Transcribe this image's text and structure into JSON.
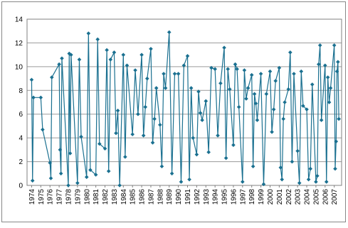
{
  "chart_data": {
    "type": "line",
    "grid": true,
    "x": [
      1974.0,
      1974.1,
      1974.2,
      1975.0,
      1975.2,
      1976.0,
      1976.1,
      1976.2,
      1977.0,
      1977.1,
      1977.2,
      1977.3,
      1978.0,
      1978.1,
      1978.2,
      1978.3,
      1979.0,
      1979.2,
      1979.4,
      1980.0,
      1980.2,
      1980.4,
      1981.0,
      1981.2,
      1981.4,
      1982.0,
      1982.2,
      1982.4,
      1982.6,
      1983.0,
      1983.2,
      1983.4,
      1983.6,
      1984.0,
      1984.2,
      1984.4,
      1985.0,
      1985.3,
      1985.6,
      1986.0,
      1986.2,
      1986.4,
      1986.6,
      1987.0,
      1987.2,
      1987.4,
      1987.6,
      1988.0,
      1988.2,
      1988.4,
      1988.6,
      1989.0,
      1989.3,
      1989.6,
      1990.0,
      1990.3,
      1990.6,
      1991.0,
      1991.2,
      1991.4,
      1991.6,
      1992.0,
      1992.2,
      1992.4,
      1992.6,
      1993.0,
      1993.3,
      1993.6,
      1994.0,
      1994.3,
      1994.6,
      1995.0,
      1995.2,
      1995.4,
      1995.6,
      1996.0,
      1996.2,
      1996.4,
      1996.6,
      1997.0,
      1997.2,
      1997.4,
      1997.6,
      1998.0,
      1998.15,
      1998.3,
      1998.45,
      1998.6,
      1999.0,
      1999.3,
      1999.6,
      2000.0,
      2000.2,
      2000.4,
      2000.6,
      2001.0,
      2001.15,
      2001.3,
      2001.45,
      2001.6,
      2002.0,
      2002.2,
      2002.4,
      2002.6,
      2003.0,
      2003.2,
      2003.4,
      2003.6,
      2004.0,
      2004.2,
      2004.4,
      2004.6,
      2005.0,
      2005.15,
      2005.3,
      2005.45,
      2005.6,
      2006.0,
      2006.15,
      2006.3,
      2006.45,
      2006.6,
      2007.0,
      2007.1,
      2007.2,
      2007.3,
      2007.4,
      2007.5
    ],
    "series": [
      {
        "color": "#1a7090",
        "values": [
          8.9,
          0.4,
          7.4,
          7.4,
          4.7,
          1.9,
          0.6,
          9.1,
          10.2,
          3.0,
          1.0,
          10.7,
          0.0,
          11.1,
          2.7,
          11.0,
          0.2,
          10.6,
          4.1,
          0.7,
          12.8,
          1.3,
          0.9,
          12.3,
          3.5,
          3.1,
          11.4,
          1.2,
          10.6,
          11.2,
          4.4,
          6.3,
          0.0,
          11.0,
          2.4,
          10.1,
          4.3,
          9.7,
          6.0,
          11.0,
          4.2,
          6.6,
          9.0,
          11.5,
          3.6,
          5.6,
          8.2,
          5.1,
          1.6,
          9.4,
          8.2,
          12.9,
          1.0,
          9.4,
          9.4,
          0.3,
          10.1,
          10.9,
          0.5,
          8.2,
          4.0,
          2.6,
          7.9,
          6.1,
          5.5,
          7.1,
          2.8,
          9.9,
          9.8,
          4.2,
          8.6,
          11.6,
          2.3,
          9.8,
          8.1,
          3.4,
          10.2,
          9.8,
          6.6,
          0.3,
          9.7,
          7.3,
          8.2,
          9.3,
          1.6,
          7.7,
          6.9,
          5.5,
          9.4,
          0.1,
          7.7,
          9.6,
          4.5,
          6.4,
          8.8,
          9.9,
          1.5,
          0.5,
          5.6,
          7.0,
          8.1,
          11.2,
          2.0,
          9.4,
          2.9,
          0.2,
          9.6,
          6.7,
          6.4,
          0.5,
          1.4,
          8.5,
          0.3,
          0.8,
          10.2,
          11.8,
          5.5,
          10.1,
          0.3,
          9.1,
          7.0,
          8.2,
          11.8,
          1.4,
          3.7,
          9.6,
          10.4,
          5.6
        ]
      }
    ],
    "xlim": [
      1973.5,
      2007.8
    ],
    "xticks": [
      1974,
      1975,
      1976,
      1977,
      1978,
      1979,
      1980,
      1981,
      1982,
      1983,
      1984,
      1985,
      1986,
      1987,
      1988,
      1989,
      1990,
      1991,
      1992,
      1993,
      1994,
      1995,
      1996,
      1997,
      1998,
      1999,
      2000,
      2001,
      2002,
      2003,
      2004,
      2005,
      2006,
      2007
    ],
    "ylim": [
      0,
      14
    ],
    "yticks": [
      0,
      2,
      4,
      6,
      8,
      10,
      12,
      14
    ]
  }
}
